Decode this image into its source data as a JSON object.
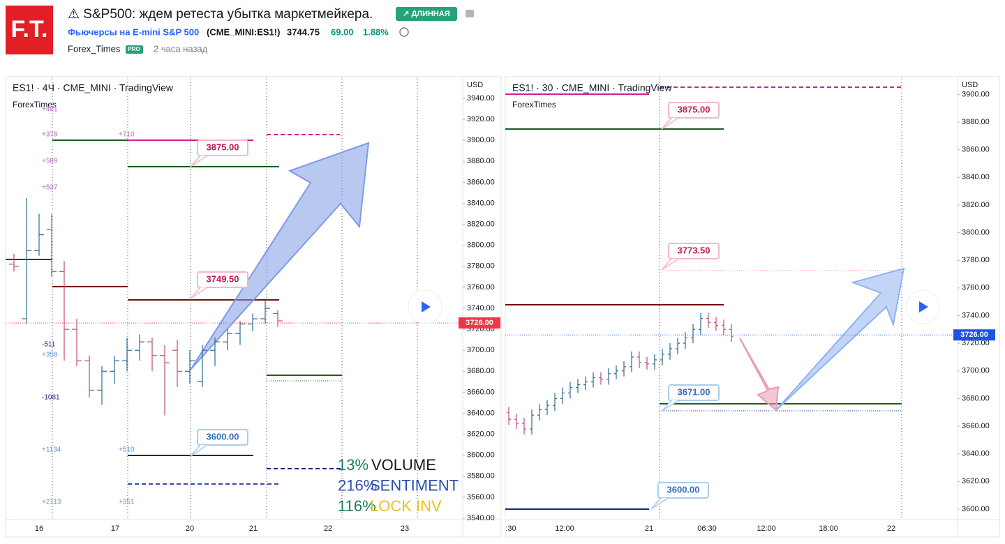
{
  "header": {
    "logo": "F.T.",
    "title": "⚠ S&P500: ждем ретеста убытка маркетмейкера.",
    "badge": "↗ ДЛИННАЯ",
    "instrument": "Фьючерсы на E-mini S&P 500",
    "symbol": "(CME_MINI:ES1!)",
    "price": "3744.75",
    "change": "69.00",
    "change_pct": "1.88%",
    "author": "Forex_Times",
    "author_badge": "PRO",
    "time": "2 часа назад"
  },
  "charts": [
    {
      "legend": "ES1! · 4Ч · CME_MINI · TradingView",
      "watermark": "ForexTimes",
      "currency": "USD",
      "ylim": [
        3540,
        3940
      ],
      "yticks": [
        {
          "value": 3940,
          "label": "3940.00"
        },
        {
          "value": 3920,
          "label": "3920.00"
        },
        {
          "value": 3900,
          "label": "3900.00"
        },
        {
          "value": 3880,
          "label": "3880.00"
        },
        {
          "value": 3860,
          "label": "3860.00"
        },
        {
          "value": 3840,
          "label": "3840.00"
        },
        {
          "value": 3820,
          "label": "3820.00"
        },
        {
          "value": 3800,
          "label": "3800.00"
        },
        {
          "value": 3780,
          "label": "3780.00"
        },
        {
          "value": 3760,
          "label": "3760.00"
        },
        {
          "value": 3740,
          "label": "3740.00"
        },
        {
          "value": 3720,
          "label": "3720.00"
        },
        {
          "value": 3700,
          "label": "3700.00"
        },
        {
          "value": 3680,
          "label": "3680.00"
        },
        {
          "value": 3660,
          "label": "3660.00"
        },
        {
          "value": 3640,
          "label": "3640.00"
        },
        {
          "value": 3620,
          "label": "3620.00"
        },
        {
          "value": 3600,
          "label": "3600.00"
        },
        {
          "value": 3580,
          "label": "3580.00"
        },
        {
          "value": 3560,
          "label": "3560.00"
        },
        {
          "value": 3540,
          "label": "3540.00"
        }
      ],
      "xlabels": [
        "16",
        "17",
        "20",
        "21",
        "22",
        "23"
      ],
      "last_price": {
        "value": 3726,
        "label": "3726.00"
      },
      "level_labels": [
        "3875.00",
        "3749.50",
        "3600.00"
      ],
      "notes": [
        "+481",
        "+378",
        "+589",
        "+537",
        "-511",
        "+358",
        "-1081",
        "+1134",
        "+2113",
        "+710",
        "+510",
        "+351"
      ],
      "bars": [
        [
          3782,
          3792,
          3775,
          3780
        ],
        [
          3730,
          3845,
          3725,
          3795
        ],
        [
          3795,
          3830,
          3790,
          3810
        ],
        [
          3815,
          3830,
          3770,
          3775
        ],
        [
          3775,
          3785,
          3690,
          3720
        ],
        [
          3720,
          3730,
          3685,
          3690
        ],
        [
          3690,
          3695,
          3655,
          3662
        ],
        [
          3662,
          3685,
          3648,
          3680
        ],
        [
          3680,
          3695,
          3668,
          3690
        ],
        [
          3690,
          3712,
          3680,
          3700
        ],
        [
          3700,
          3715,
          3690,
          3708
        ],
        [
          3708,
          3712,
          3680,
          3695
        ],
        [
          3695,
          3705,
          3638,
          3688
        ],
        [
          3700,
          3710,
          3665,
          3680
        ],
        [
          3680,
          3700,
          3668,
          3690
        ],
        [
          3670,
          3705,
          3665,
          3700
        ],
        [
          3700,
          3712,
          3685,
          3708
        ],
        [
          3708,
          3720,
          3700,
          3716
        ],
        [
          3716,
          3728,
          3705,
          3725
        ],
        [
          3725,
          3735,
          3718,
          3730
        ],
        [
          3730,
          3747,
          3725,
          3740
        ],
        [
          3735,
          3738,
          3722,
          3728
        ]
      ],
      "indicators": [
        {
          "pct": "13%",
          "name": "VOLUME"
        },
        {
          "pct": "216%",
          "name": "SENTIMENT"
        },
        {
          "pct": "116%",
          "name": "LOCK INV"
        }
      ]
    },
    {
      "legend": "ES1! · 30 · CME_MINI · TradingView",
      "watermark": "ForexTimes",
      "currency": "USD",
      "ylim": [
        3590,
        3905
      ],
      "yticks": [
        {
          "value": 3900,
          "label": "3900.00"
        },
        {
          "value": 3880,
          "label": "3880.00"
        },
        {
          "value": 3860,
          "label": "3860.00"
        },
        {
          "value": 3840,
          "label": "3840.00"
        },
        {
          "value": 3820,
          "label": "3820.00"
        },
        {
          "value": 3800,
          "label": "3800.00"
        },
        {
          "value": 3780,
          "label": "3780.00"
        },
        {
          "value": 3760,
          "label": "3760.00"
        },
        {
          "value": 3740,
          "label": "3740.00"
        },
        {
          "value": 3720,
          "label": "3720.00"
        },
        {
          "value": 3700,
          "label": "3700.00"
        },
        {
          "value": 3680,
          "label": "3680.00"
        },
        {
          "value": 3660,
          "label": "3660.00"
        },
        {
          "value": 3640,
          "label": "3640.00"
        },
        {
          "value": 3620,
          "label": "3620.00"
        },
        {
          "value": 3600,
          "label": "3600.00"
        }
      ],
      "xlabels": [
        ":30",
        "12:00",
        "21",
        "06:30",
        "12:00",
        "18:00",
        "22"
      ],
      "last_price": {
        "value": 3726,
        "label": "3726.00"
      },
      "level_labels": [
        "3875.00",
        "3773.50",
        "3671.00",
        "3600.00"
      ],
      "bars": [
        [
          3670,
          3674,
          3661,
          3665
        ],
        [
          3665,
          3669,
          3658,
          3662
        ],
        [
          3662,
          3666,
          3654,
          3658
        ],
        [
          3658,
          3672,
          3654,
          3668
        ],
        [
          3668,
          3676,
          3664,
          3672
        ],
        [
          3672,
          3679,
          3668,
          3675
        ],
        [
          3675,
          3684,
          3671,
          3680
        ],
        [
          3680,
          3688,
          3676,
          3684
        ],
        [
          3684,
          3692,
          3680,
          3688
        ],
        [
          3688,
          3694,
          3684,
          3690
        ],
        [
          3690,
          3696,
          3686,
          3692
        ],
        [
          3692,
          3699,
          3688,
          3695
        ],
        [
          3695,
          3699,
          3690,
          3694
        ],
        [
          3694,
          3702,
          3690,
          3698
        ],
        [
          3698,
          3704,
          3694,
          3700
        ],
        [
          3700,
          3707,
          3696,
          3703
        ],
        [
          3703,
          3714,
          3699,
          3710
        ],
        [
          3710,
          3714,
          3702,
          3706
        ],
        [
          3706,
          3710,
          3701,
          3705
        ],
        [
          3705,
          3712,
          3701,
          3708
        ],
        [
          3708,
          3716,
          3704,
          3712
        ],
        [
          3712,
          3720,
          3708,
          3716
        ],
        [
          3716,
          3724,
          3712,
          3720
        ],
        [
          3720,
          3728,
          3716,
          3724
        ],
        [
          3724,
          3734,
          3720,
          3730
        ],
        [
          3730,
          3742,
          3726,
          3738
        ],
        [
          3738,
          3742,
          3731,
          3735
        ],
        [
          3735,
          3739,
          3729,
          3733
        ],
        [
          3733,
          3737,
          3726,
          3730
        ],
        [
          3730,
          3734,
          3721,
          3725
        ]
      ]
    }
  ]
}
